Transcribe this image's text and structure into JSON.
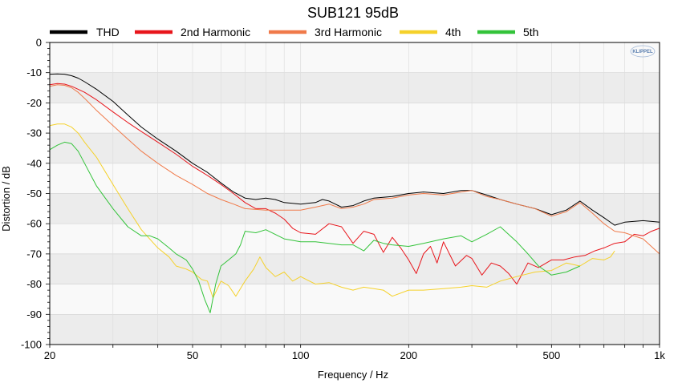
{
  "chart_data": {
    "type": "line",
    "title": "SUB121 95dB",
    "xlabel": "Frequency / Hz",
    "ylabel": "Distortion / dB",
    "x_scale": "log",
    "xlim": [
      20,
      1000
    ],
    "ylim": [
      -100,
      0
    ],
    "x_ticks": [
      20,
      50,
      100,
      200,
      500,
      1000
    ],
    "x_tick_labels": [
      "20",
      "50",
      "100",
      "200",
      "500",
      "1k"
    ],
    "y_ticks": [
      0,
      -10,
      -20,
      -30,
      -40,
      -50,
      -60,
      -70,
      -80,
      -90,
      -100
    ],
    "y_tick_labels": [
      "0",
      "-10",
      "-20",
      "-30",
      "-40",
      "-50",
      "-60",
      "-70",
      "-80",
      "-90",
      "-100"
    ],
    "grid": true,
    "legend_position": "top",
    "logo": "KLIPPEL",
    "series": [
      {
        "name": "THD",
        "color": "#000000",
        "x": [
          20,
          21,
          22,
          23,
          24,
          25,
          27,
          30,
          33,
          36,
          40,
          45,
          50,
          55,
          60,
          65,
          70,
          75,
          80,
          85,
          90,
          100,
          110,
          115,
          120,
          130,
          140,
          150,
          160,
          180,
          200,
          220,
          250,
          280,
          300,
          330,
          360,
          400,
          450,
          500,
          550,
          600,
          650,
          700,
          750,
          800,
          900,
          1000
        ],
        "y": [
          -10.5,
          -10.4,
          -10.5,
          -11,
          -11.8,
          -13,
          -15.5,
          -19.5,
          -24,
          -28,
          -32,
          -36,
          -40,
          -43,
          -46.5,
          -49.5,
          -51.5,
          -52,
          -51.5,
          -52,
          -53,
          -53.5,
          -53,
          -52,
          -52.5,
          -54.5,
          -54,
          -52.5,
          -51.5,
          -51,
          -50,
          -49.5,
          -50,
          -49,
          -49,
          -50.5,
          -52,
          -53.5,
          -55,
          -57,
          -55.5,
          -52.5,
          -55.5,
          -58,
          -60.5,
          -59.5,
          -59,
          -59.5
        ]
      },
      {
        "name": "2nd Harmonic",
        "color": "#e8151b",
        "x": [
          20,
          21,
          22,
          23,
          24,
          25,
          27,
          30,
          33,
          36,
          40,
          45,
          50,
          55,
          60,
          65,
          70,
          75,
          80,
          85,
          90,
          95,
          100,
          110,
          120,
          130,
          140,
          150,
          160,
          170,
          180,
          190,
          200,
          210,
          220,
          230,
          240,
          250,
          270,
          290,
          300,
          320,
          340,
          360,
          380,
          400,
          430,
          460,
          500,
          540,
          580,
          620,
          660,
          700,
          750,
          800,
          850,
          900,
          950,
          1000
        ],
        "y": [
          -14,
          -13.6,
          -13.8,
          -14.5,
          -15.5,
          -16.5,
          -19,
          -23,
          -26.5,
          -29.5,
          -33,
          -37,
          -41,
          -44,
          -47,
          -50,
          -53,
          -55,
          -55,
          -56.5,
          -58.5,
          -61.5,
          -63,
          -63.5,
          -60,
          -61,
          -66.5,
          -62.5,
          -63.5,
          -69.5,
          -64.5,
          -68,
          -72,
          -76.5,
          -70,
          -67.5,
          -73,
          -66,
          -74,
          -70.5,
          -71.5,
          -77,
          -73,
          -74,
          -76.5,
          -80,
          -73,
          -74.5,
          -72,
          -72,
          -71,
          -70.5,
          -69,
          -68,
          -66.5,
          -66,
          -63.5,
          -64,
          -62.5,
          -61.5
        ]
      },
      {
        "name": "3rd Harmonic",
        "color": "#f07a4a",
        "x": [
          20,
          21,
          22,
          23,
          24,
          25,
          27,
          30,
          33,
          36,
          40,
          45,
          50,
          55,
          60,
          65,
          70,
          80,
          90,
          100,
          110,
          120,
          130,
          140,
          150,
          160,
          180,
          200,
          220,
          250,
          280,
          300,
          330,
          360,
          400,
          450,
          500,
          550,
          600,
          650,
          700,
          750,
          800,
          900,
          1000
        ],
        "y": [
          -14.5,
          -14,
          -14.2,
          -15,
          -16.5,
          -18.5,
          -22.5,
          -27.5,
          -32,
          -36,
          -40,
          -44,
          -47,
          -50,
          -52,
          -53.5,
          -55,
          -55.5,
          -55.5,
          -55.5,
          -54.5,
          -53.5,
          -55,
          -54.5,
          -53.5,
          -52,
          -51.5,
          -50.5,
          -50,
          -50.5,
          -49.5,
          -49,
          -51,
          -52,
          -53.5,
          -55,
          -57.5,
          -56,
          -53,
          -56.5,
          -60,
          -62.5,
          -63,
          -65,
          -70
        ]
      },
      {
        "name": "4th",
        "color": "#f5d12a",
        "x": [
          20,
          21,
          22,
          23,
          24,
          25,
          27,
          30,
          33,
          36,
          40,
          43,
          45,
          48,
          50,
          53,
          55,
          57,
          60,
          63,
          66,
          70,
          74,
          77,
          80,
          85,
          90,
          95,
          100,
          110,
          120,
          130,
          140,
          150,
          160,
          170,
          180,
          200,
          220,
          250,
          280,
          300,
          330,
          360,
          400,
          450,
          500,
          550,
          600,
          650,
          700,
          730,
          750
        ],
        "y": [
          -27.5,
          -27,
          -27,
          -28,
          -30,
          -33,
          -38,
          -47,
          -55,
          -62,
          -68,
          -71,
          -74,
          -75,
          -76,
          -78.5,
          -79,
          -84.5,
          -79,
          -80.5,
          -84,
          -79,
          -75,
          -71,
          -74.5,
          -77.5,
          -76,
          -79,
          -77.5,
          -80,
          -79.5,
          -81,
          -82,
          -81,
          -81.5,
          -82,
          -84,
          -82,
          -82,
          -81.5,
          -81,
          -80.5,
          -81,
          -79,
          -77.5,
          -76,
          -75.5,
          -73,
          -74,
          -71.5,
          -72,
          -71,
          -69
        ]
      },
      {
        "name": "5th",
        "color": "#33c33a",
        "x": [
          20,
          21,
          22,
          23,
          24,
          25,
          27,
          30,
          33,
          36,
          38,
          40,
          43,
          45,
          48,
          50,
          52,
          54,
          56,
          58,
          60,
          63,
          66,
          68,
          70,
          75,
          80,
          90,
          100,
          110,
          120,
          130,
          140,
          150,
          160,
          170,
          180,
          200,
          220,
          250,
          280,
          300,
          330,
          360,
          400,
          430,
          460,
          500,
          550,
          600
        ],
        "y": [
          -35.5,
          -34,
          -33,
          -33.5,
          -36,
          -40,
          -47.5,
          -55,
          -61,
          -64,
          -64,
          -65,
          -68,
          -70,
          -72,
          -75,
          -79,
          -85,
          -89.5,
          -80,
          -74,
          -72,
          -70,
          -67,
          -62.5,
          -63,
          -62,
          -65,
          -66,
          -66,
          -66.5,
          -67,
          -67,
          -69,
          -65.5,
          -66.5,
          -67,
          -67.5,
          -66.5,
          -65,
          -64,
          -66,
          -63.5,
          -61,
          -66,
          -70,
          -74,
          -77,
          -76,
          -74
        ]
      }
    ]
  }
}
